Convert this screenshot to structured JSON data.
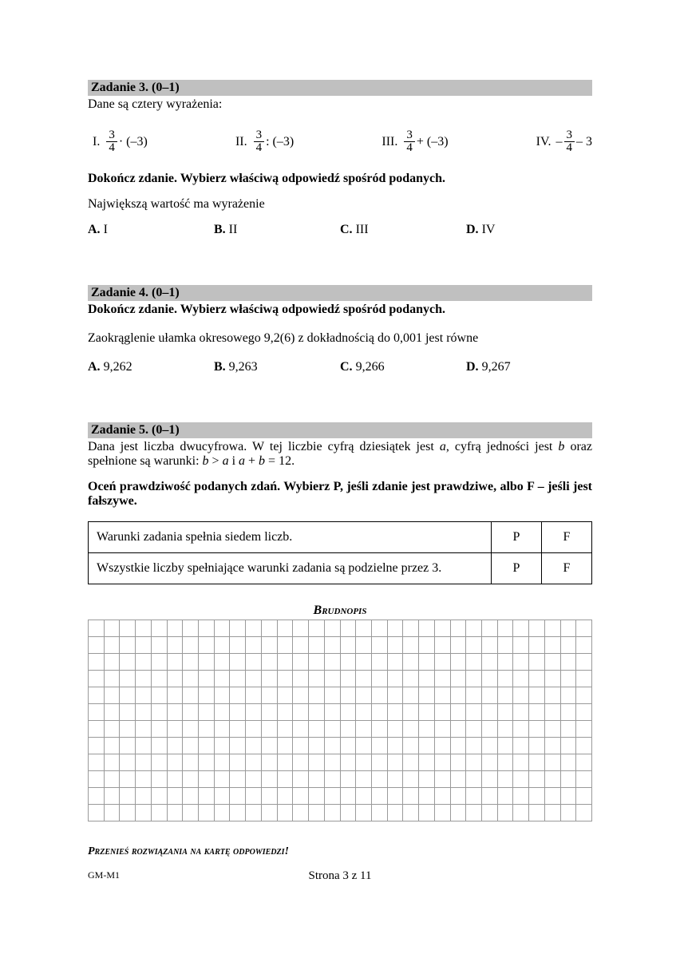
{
  "task3": {
    "header": "Zadanie 3. (0–1)",
    "intro": "Dane są cztery wyrażenia:",
    "exprs": {
      "I": {
        "label": "I.",
        "num": "3",
        "den": "4",
        "after": " · (–3)",
        "neg": false
      },
      "II": {
        "label": "II.",
        "num": "3",
        "den": "4",
        "after": " : (–3)",
        "neg": false
      },
      "III": {
        "label": "III.",
        "num": "3",
        "den": "4",
        "after": " + (–3)",
        "neg": false
      },
      "IV": {
        "label": "IV.",
        "num": "3",
        "den": "4",
        "after": " – 3",
        "neg": true
      }
    },
    "instruction": "Dokończ zdanie. Wybierz właściwą odpowiedź spośród podanych.",
    "stem": "Największą wartość ma wyrażenie",
    "answers": {
      "A": "I",
      "B": "II",
      "C": "III",
      "D": "IV"
    }
  },
  "task4": {
    "header": "Zadanie 4. (0–1)",
    "instruction": "Dokończ zdanie. Wybierz właściwą odpowiedź spośród podanych.",
    "stem": "Zaokrąglenie ułamka okresowego 9,2(6) z dokładnością do 0,001 jest równe",
    "answers": {
      "A": "9,262",
      "B": "9,263",
      "C": "9,266",
      "D": "9,267"
    }
  },
  "task5": {
    "header": "Zadanie 5. (0–1)",
    "intro": "Dana jest liczba dwucyfrowa. W tej liczbie cyfrą dziesiątek jest a, cyfrą jedności jest b oraz spełnione są warunki: b > a i a + b = 12.",
    "instruction": "Oceń prawdziwość podanych zdań. Wybierz P, jeśli zdanie jest prawdziwe, albo F – jeśli jest fałszywe.",
    "rows": [
      {
        "text": "Warunki zadania spełnia siedem liczb.",
        "P": "P",
        "F": "F"
      },
      {
        "text": "Wszystkie liczby spełniające warunki zadania są podzielne przez 3.",
        "P": "P",
        "F": "F"
      }
    ]
  },
  "brudnopis": {
    "title": "Brudnopis",
    "rows": 12,
    "cols": 32
  },
  "transfer": "Przenieś rozwiązania na kartę odpowiedzi!",
  "footer": {
    "code": "GM-M1",
    "page": "Strona 3 z 11"
  },
  "labels": {
    "A": "A.",
    "B": "B.",
    "C": "C.",
    "D": "D."
  }
}
